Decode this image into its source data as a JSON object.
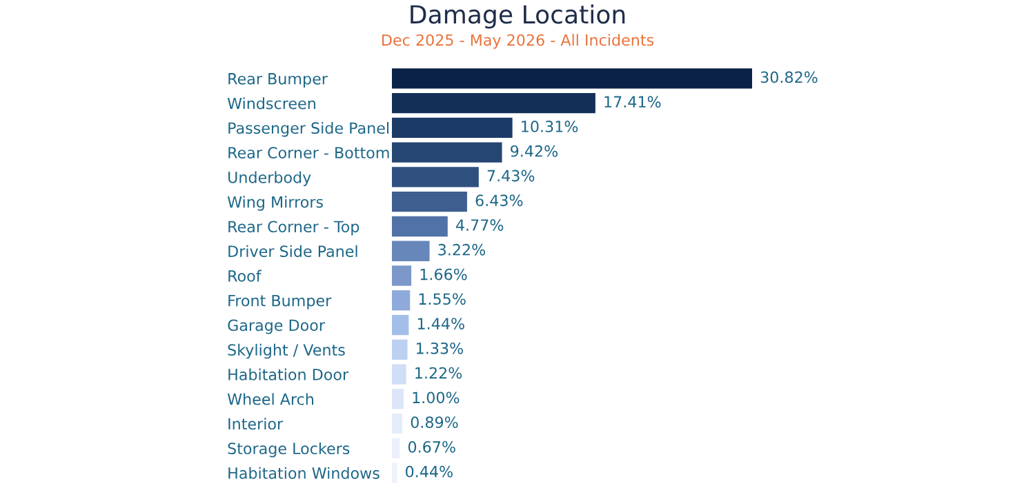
{
  "chart_data": {
    "type": "bar",
    "orientation": "horizontal",
    "title": "Damage Location",
    "subtitle": "Dec 2025 - May 2026 - All Incidents",
    "categories": [
      "Rear Bumper",
      "Windscreen",
      "Passenger Side Panel",
      "Rear Corner - Bottom",
      "Underbody",
      "Wing Mirrors",
      "Rear Corner - Top",
      "Driver Side Panel",
      "Roof",
      "Front Bumper",
      "Garage Door",
      "Skylight / Vents",
      "Habitation Door",
      "Wheel Arch",
      "Interior",
      "Storage Lockers",
      "Habitation Windows"
    ],
    "values": [
      30.82,
      17.41,
      10.31,
      9.42,
      7.43,
      6.43,
      4.77,
      3.22,
      1.66,
      1.55,
      1.44,
      1.33,
      1.22,
      1.0,
      0.89,
      0.67,
      0.44
    ],
    "value_labels": [
      "30.82%",
      "17.41%",
      "10.31%",
      "9.42%",
      "7.43%",
      "6.43%",
      "4.77%",
      "3.22%",
      "1.66%",
      "1.55%",
      "1.44%",
      "1.33%",
      "1.22%",
      "1.00%",
      "0.89%",
      "0.67%",
      "0.44%"
    ],
    "colors": [
      "#0b2248",
      "#142f57",
      "#1c3a66",
      "#264672",
      "#30517f",
      "#3d5e8f",
      "#5072a6",
      "#6787bb",
      "#7b98c9",
      "#8eaadb",
      "#a3bfe9",
      "#bcd1f2",
      "#d0def6",
      "#dce6f8",
      "#e5ecf9",
      "#ebf0fb",
      "#eef2fb"
    ],
    "grid": false,
    "legend": false
  }
}
